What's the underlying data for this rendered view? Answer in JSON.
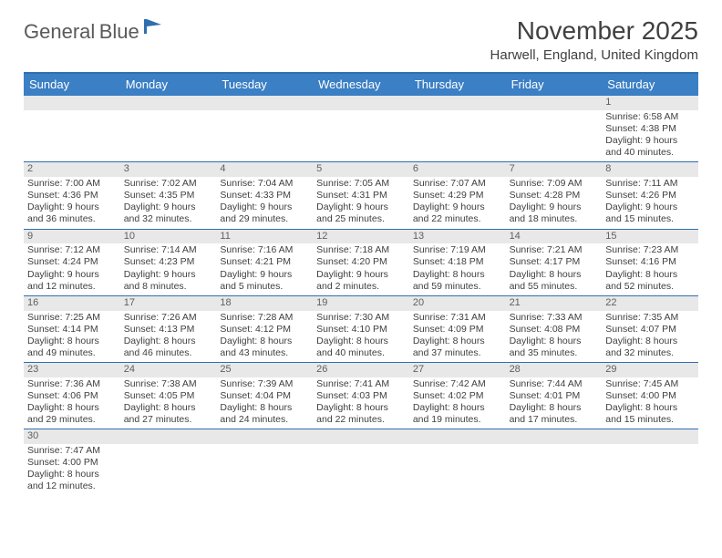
{
  "logo": {
    "text1": "General",
    "text2": "Blue"
  },
  "title": "November 2025",
  "location": "Harwell, England, United Kingdom",
  "colors": {
    "header_bg": "#3b7fc4",
    "border": "#2f6fb0",
    "daynum_bg": "#e8e8e8",
    "text": "#404040"
  },
  "daysOfWeek": [
    "Sunday",
    "Monday",
    "Tuesday",
    "Wednesday",
    "Thursday",
    "Friday",
    "Saturday"
  ],
  "weeks": [
    [
      null,
      null,
      null,
      null,
      null,
      null,
      {
        "n": "1",
        "sr": "6:58 AM",
        "ss": "4:38 PM",
        "dl": "9 hours and 40 minutes."
      }
    ],
    [
      {
        "n": "2",
        "sr": "7:00 AM",
        "ss": "4:36 PM",
        "dl": "9 hours and 36 minutes."
      },
      {
        "n": "3",
        "sr": "7:02 AM",
        "ss": "4:35 PM",
        "dl": "9 hours and 32 minutes."
      },
      {
        "n": "4",
        "sr": "7:04 AM",
        "ss": "4:33 PM",
        "dl": "9 hours and 29 minutes."
      },
      {
        "n": "5",
        "sr": "7:05 AM",
        "ss": "4:31 PM",
        "dl": "9 hours and 25 minutes."
      },
      {
        "n": "6",
        "sr": "7:07 AM",
        "ss": "4:29 PM",
        "dl": "9 hours and 22 minutes."
      },
      {
        "n": "7",
        "sr": "7:09 AM",
        "ss": "4:28 PM",
        "dl": "9 hours and 18 minutes."
      },
      {
        "n": "8",
        "sr": "7:11 AM",
        "ss": "4:26 PM",
        "dl": "9 hours and 15 minutes."
      }
    ],
    [
      {
        "n": "9",
        "sr": "7:12 AM",
        "ss": "4:24 PM",
        "dl": "9 hours and 12 minutes."
      },
      {
        "n": "10",
        "sr": "7:14 AM",
        "ss": "4:23 PM",
        "dl": "9 hours and 8 minutes."
      },
      {
        "n": "11",
        "sr": "7:16 AM",
        "ss": "4:21 PM",
        "dl": "9 hours and 5 minutes."
      },
      {
        "n": "12",
        "sr": "7:18 AM",
        "ss": "4:20 PM",
        "dl": "9 hours and 2 minutes."
      },
      {
        "n": "13",
        "sr": "7:19 AM",
        "ss": "4:18 PM",
        "dl": "8 hours and 59 minutes."
      },
      {
        "n": "14",
        "sr": "7:21 AM",
        "ss": "4:17 PM",
        "dl": "8 hours and 55 minutes."
      },
      {
        "n": "15",
        "sr": "7:23 AM",
        "ss": "4:16 PM",
        "dl": "8 hours and 52 minutes."
      }
    ],
    [
      {
        "n": "16",
        "sr": "7:25 AM",
        "ss": "4:14 PM",
        "dl": "8 hours and 49 minutes."
      },
      {
        "n": "17",
        "sr": "7:26 AM",
        "ss": "4:13 PM",
        "dl": "8 hours and 46 minutes."
      },
      {
        "n": "18",
        "sr": "7:28 AM",
        "ss": "4:12 PM",
        "dl": "8 hours and 43 minutes."
      },
      {
        "n": "19",
        "sr": "7:30 AM",
        "ss": "4:10 PM",
        "dl": "8 hours and 40 minutes."
      },
      {
        "n": "20",
        "sr": "7:31 AM",
        "ss": "4:09 PM",
        "dl": "8 hours and 37 minutes."
      },
      {
        "n": "21",
        "sr": "7:33 AM",
        "ss": "4:08 PM",
        "dl": "8 hours and 35 minutes."
      },
      {
        "n": "22",
        "sr": "7:35 AM",
        "ss": "4:07 PM",
        "dl": "8 hours and 32 minutes."
      }
    ],
    [
      {
        "n": "23",
        "sr": "7:36 AM",
        "ss": "4:06 PM",
        "dl": "8 hours and 29 minutes."
      },
      {
        "n": "24",
        "sr": "7:38 AM",
        "ss": "4:05 PM",
        "dl": "8 hours and 27 minutes."
      },
      {
        "n": "25",
        "sr": "7:39 AM",
        "ss": "4:04 PM",
        "dl": "8 hours and 24 minutes."
      },
      {
        "n": "26",
        "sr": "7:41 AM",
        "ss": "4:03 PM",
        "dl": "8 hours and 22 minutes."
      },
      {
        "n": "27",
        "sr": "7:42 AM",
        "ss": "4:02 PM",
        "dl": "8 hours and 19 minutes."
      },
      {
        "n": "28",
        "sr": "7:44 AM",
        "ss": "4:01 PM",
        "dl": "8 hours and 17 minutes."
      },
      {
        "n": "29",
        "sr": "7:45 AM",
        "ss": "4:00 PM",
        "dl": "8 hours and 15 minutes."
      }
    ],
    [
      {
        "n": "30",
        "sr": "7:47 AM",
        "ss": "4:00 PM",
        "dl": "8 hours and 12 minutes."
      },
      null,
      null,
      null,
      null,
      null,
      null
    ]
  ]
}
